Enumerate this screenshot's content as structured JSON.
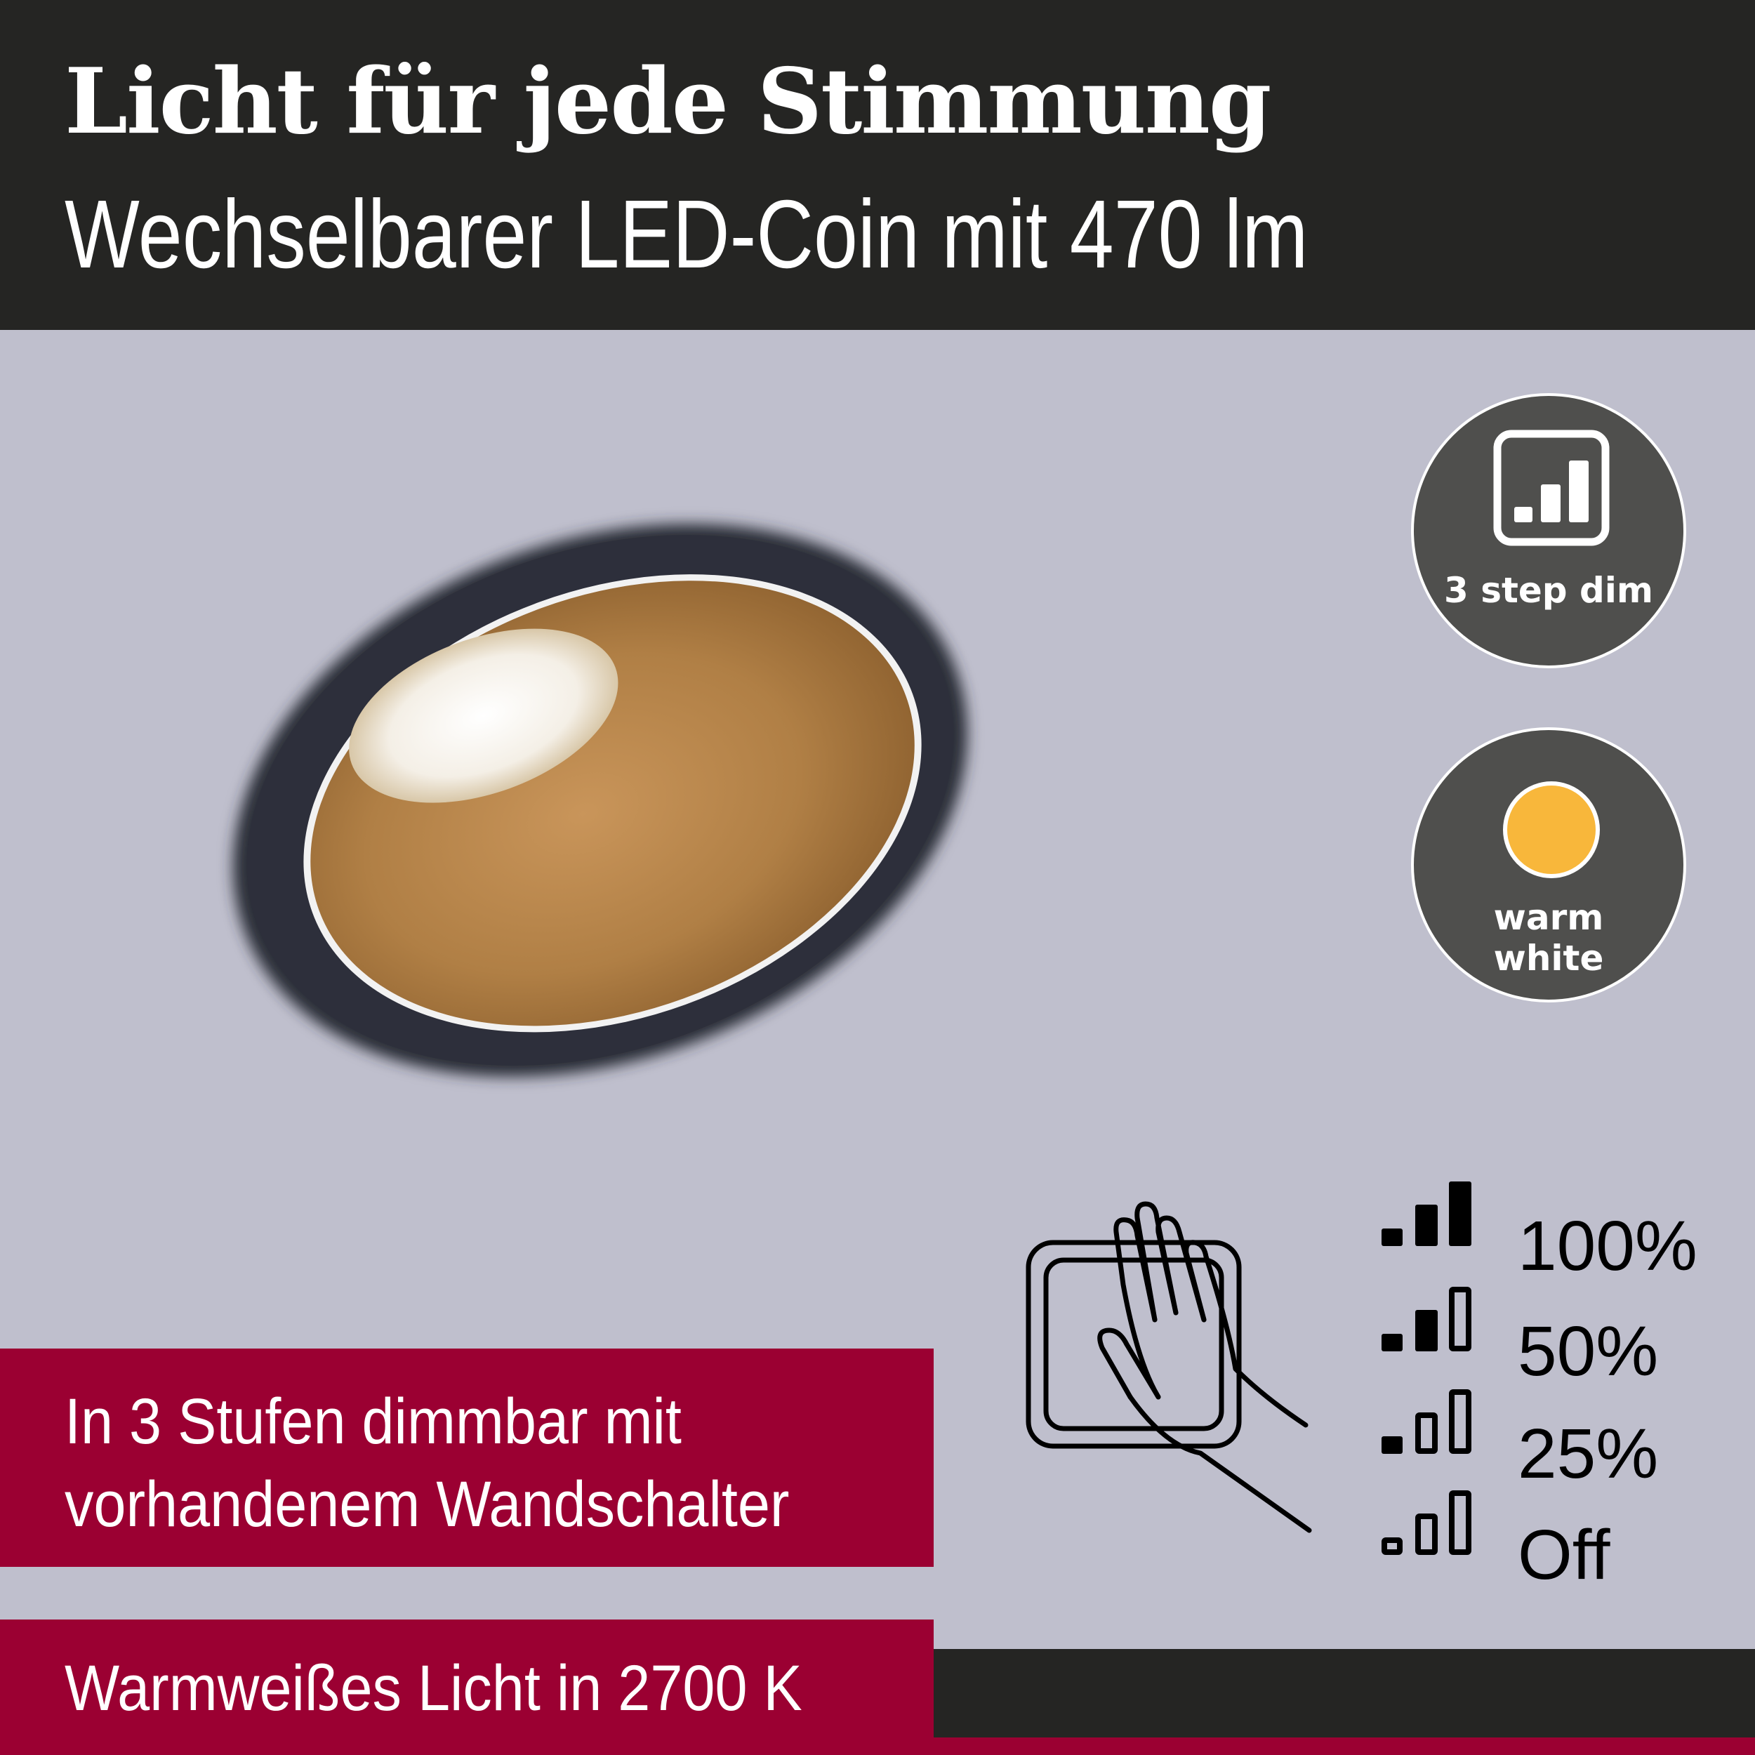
{
  "header": {
    "title": "Licht für jede Stimmung",
    "subtitle": "Wechselbarer LED-Coin mit 470 lm"
  },
  "badges": [
    {
      "icon": "dimmer-bars-icon",
      "label": "3 step dim"
    },
    {
      "icon": "warm-light-dot-icon",
      "label_line1": "warm",
      "label_line2": "white",
      "dot_color": "#f8b73b"
    }
  ],
  "dim_box": {
    "line1": "In 3 Stufen dimmbar mit",
    "line2": "vorhandenem Wandschalter"
  },
  "color_box": {
    "text": "Warmweißes Licht in 2700 K"
  },
  "levels": [
    {
      "label": "100%",
      "filled_bars": 3
    },
    {
      "label": "50%",
      "filled_bars": 2
    },
    {
      "label": "25%",
      "filled_bars": 1
    },
    {
      "label": "Off",
      "filled_bars": 0
    }
  ],
  "colors": {
    "dark": "#252523",
    "accent_red": "#9b0032",
    "background": "#bfbfcd",
    "badge": "#4f4f4d"
  }
}
